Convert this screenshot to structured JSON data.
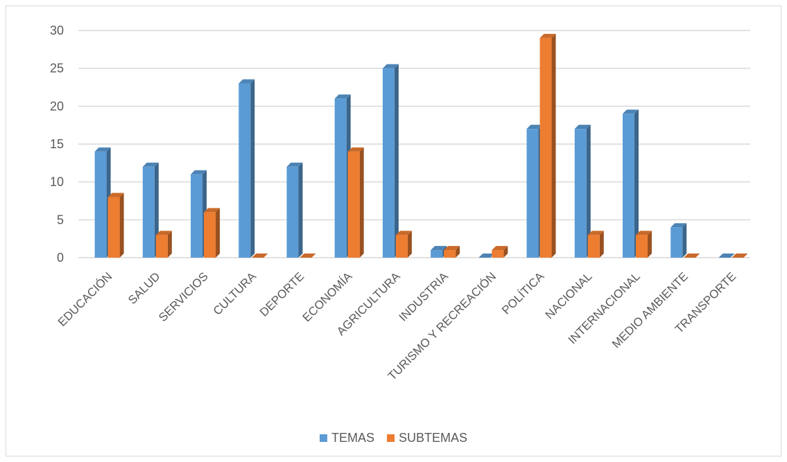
{
  "chart_data": {
    "type": "bar",
    "categories": [
      "EDUCACIÓN",
      "SALUD",
      "SERVICIOS",
      "CULTURA",
      "DEPORTE",
      "ECONOMÍA",
      "AGRICULTURA",
      "INDUSTRIA",
      "TURISMO Y RECREACIÓN",
      "POLÍTICA",
      "NACIONAL",
      "INTERNACIONAL",
      "MEDIO AMBIENTE",
      "TRANSPORTE"
    ],
    "series": [
      {
        "name": "TEMAS",
        "values": [
          14,
          12,
          11,
          23,
          12,
          21,
          25,
          1,
          0,
          17,
          17,
          19,
          4,
          0
        ],
        "color": "#5b9bd5"
      },
      {
        "name": "SUBTEMAS",
        "values": [
          8,
          3,
          6,
          0,
          0,
          14,
          3,
          1,
          1,
          29,
          3,
          3,
          0,
          0
        ],
        "color": "#ed7d31"
      }
    ],
    "ylim": [
      0,
      30
    ],
    "yticks": [
      0,
      5,
      10,
      15,
      20,
      25,
      30
    ],
    "grid": true,
    "legend_position": "bottom",
    "bar_style": "3d-column",
    "title": "",
    "xlabel": "",
    "ylabel": ""
  }
}
